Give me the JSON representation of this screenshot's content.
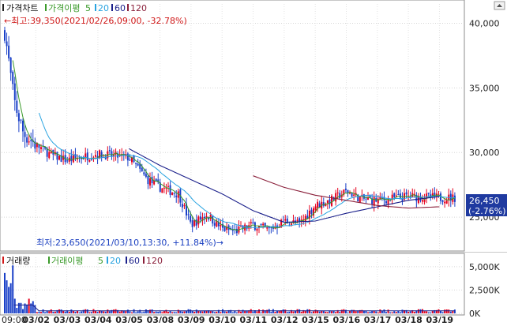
{
  "price_panel": {
    "legend": {
      "title": "가격차트",
      "ma_label": "가격이평",
      "ma_periods": [
        "5",
        "20",
        "60",
        "120"
      ]
    },
    "max_annotation": "←최고:39,350(2021/02/26,09:00, -32.78%)",
    "min_annotation": "최저:23,650(2021/03/10,13:30, +11.84%)→",
    "current_price": "26,450",
    "current_change": "(-2.76%)",
    "y_tick_labels": [
      "40,000",
      "35,000",
      "30,000",
      "25,000"
    ]
  },
  "volume_panel": {
    "legend": {
      "title": "거래량",
      "ma_label": "거래이평",
      "ma_periods": [
        "5",
        "20",
        "60",
        "120"
      ]
    },
    "y_tick_labels": [
      "5,000K",
      "2,500K",
      "0K"
    ]
  },
  "x_tick_labels": [
    "09:00",
    "03/02",
    "03/03",
    "03/04",
    "03/05",
    "03/08",
    "03/09",
    "03/10",
    "03/11",
    "03/12",
    "03/15",
    "03/16",
    "03/17",
    "03/18",
    "03/19"
  ],
  "colors": {
    "up": "#e5001e",
    "down": "#1a40c8",
    "ma5": "#3a9a2a",
    "ma20": "#29a3e0",
    "ma60": "#1a1f8a",
    "ma120": "#8a1f3a",
    "price_badge": "#1f3aa0"
  },
  "chart_data": {
    "type": "candlestick",
    "y_range": [
      22500,
      41500
    ],
    "volume_range": [
      0,
      6000
    ],
    "sessions": [
      "09:00",
      "03/02",
      "03/03",
      "03/04",
      "03/05",
      "03/08",
      "03/09",
      "03/10",
      "03/11",
      "03/12",
      "03/15",
      "03/16",
      "03/17",
      "03/18",
      "03/19"
    ],
    "price_anchors": [
      {
        "t": 0,
        "p": 39350
      },
      {
        "t": 0.3,
        "p": 34000
      },
      {
        "t": 0.6,
        "p": 31500
      },
      {
        "t": 1.0,
        "p": 30600
      },
      {
        "t": 1.5,
        "p": 29800
      },
      {
        "t": 2.0,
        "p": 29400
      },
      {
        "t": 3.0,
        "p": 29900
      },
      {
        "t": 4.0,
        "p": 29600
      },
      {
        "t": 4.6,
        "p": 27900
      },
      {
        "t": 5.0,
        "p": 27300
      },
      {
        "t": 5.6,
        "p": 26800
      },
      {
        "t": 6.0,
        "p": 24400
      },
      {
        "t": 6.5,
        "p": 25200
      },
      {
        "t": 7.0,
        "p": 24100
      },
      {
        "t": 7.4,
        "p": 23900
      },
      {
        "t": 8.0,
        "p": 24400
      },
      {
        "t": 8.5,
        "p": 24000
      },
      {
        "t": 9.0,
        "p": 24700
      },
      {
        "t": 9.5,
        "p": 24500
      },
      {
        "t": 10.0,
        "p": 25900
      },
      {
        "t": 10.5,
        "p": 26300
      },
      {
        "t": 11.0,
        "p": 27000
      },
      {
        "t": 11.5,
        "p": 26400
      },
      {
        "t": 12.0,
        "p": 26300
      },
      {
        "t": 13.0,
        "p": 26600
      },
      {
        "t": 14.0,
        "p": 26500
      }
    ],
    "ma60_anchors": [
      {
        "t": 4.0,
        "p": 30300
      },
      {
        "t": 5.0,
        "p": 29000
      },
      {
        "t": 6.0,
        "p": 27900
      },
      {
        "t": 7.0,
        "p": 26800
      },
      {
        "t": 8.0,
        "p": 25500
      },
      {
        "t": 9.0,
        "p": 24600
      },
      {
        "t": 10.0,
        "p": 24700
      },
      {
        "t": 11.0,
        "p": 25300
      },
      {
        "t": 12.0,
        "p": 25800
      },
      {
        "t": 13.0,
        "p": 26300
      },
      {
        "t": 14.0,
        "p": 26600
      }
    ],
    "ma120_anchors": [
      {
        "t": 8.0,
        "p": 28200
      },
      {
        "t": 9.0,
        "p": 27300
      },
      {
        "t": 10.0,
        "p": 26700
      },
      {
        "t": 11.0,
        "p": 26300
      },
      {
        "t": 12.0,
        "p": 25900
      },
      {
        "t": 13.0,
        "p": 25700
      },
      {
        "t": 14.0,
        "p": 25800
      }
    ],
    "max": {
      "value": 39350,
      "time": "2021/02/26,09:00",
      "change_pct": -32.78
    },
    "min": {
      "value": 23650,
      "time": "2021/03/10,13:30",
      "change_pct": 11.84
    },
    "last": {
      "value": 26450,
      "change_pct": -2.76
    }
  }
}
